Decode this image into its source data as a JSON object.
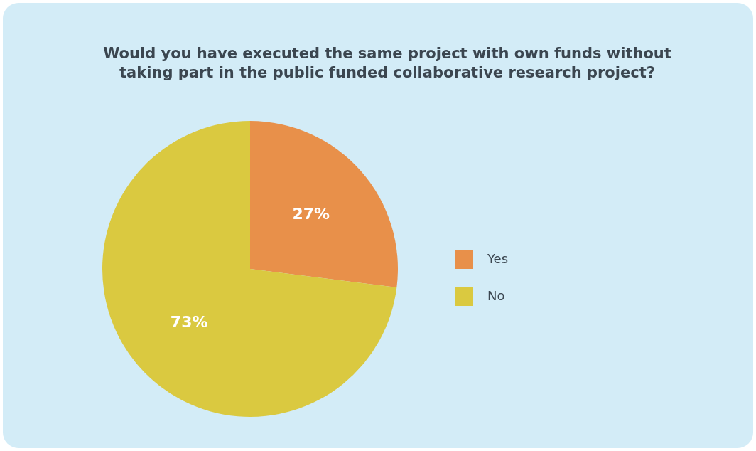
{
  "chart_data": {
    "type": "pie",
    "title": "Would you have executed the same project with own funds without\ntaking part in the public funded collaborative research project?",
    "categories": [
      "Yes",
      "No"
    ],
    "values": [
      27,
      73
    ],
    "colors": [
      "#e8904a",
      "#dac940"
    ],
    "value_labels": [
      "27%",
      "73%"
    ],
    "legend": "right"
  }
}
